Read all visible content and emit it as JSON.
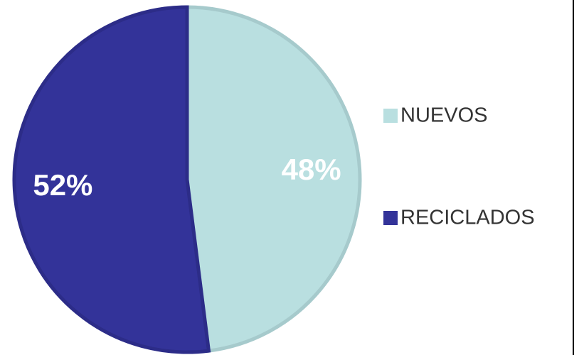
{
  "chart_data": {
    "type": "pie",
    "categories": [
      "NUEVOS",
      "RECICLADOS"
    ],
    "values": [
      48,
      52
    ],
    "value_labels": [
      "48%",
      "52%"
    ],
    "colors": [
      "#b9dfe0",
      "#333399"
    ],
    "legend": "right"
  }
}
